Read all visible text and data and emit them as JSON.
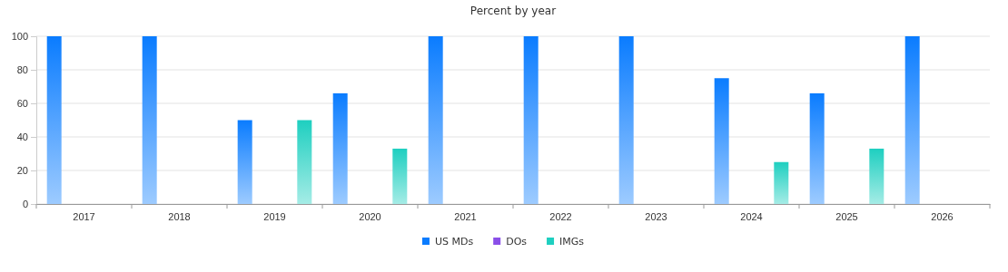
{
  "chart_data": {
    "type": "bar",
    "title": "Percent by year",
    "categories": [
      "2017",
      "2018",
      "2019",
      "2020",
      "2021",
      "2022",
      "2023",
      "2024",
      "2025",
      "2026"
    ],
    "series": [
      {
        "name": "US MDs",
        "color": "#0a7cff",
        "values": [
          100,
          100,
          50,
          66,
          100,
          100,
          100,
          75,
          66,
          100
        ]
      },
      {
        "name": "DOs",
        "color": "#8a4fe8",
        "values": [
          0,
          0,
          0,
          0,
          0,
          0,
          0,
          0,
          0,
          0
        ]
      },
      {
        "name": "IMGs",
        "color": "#1ecfc0",
        "values": [
          0,
          0,
          50,
          33,
          0,
          0,
          0,
          25,
          33,
          0
        ]
      }
    ],
    "ylim": [
      0,
      100
    ],
    "yticks": [
      0,
      20,
      40,
      60,
      80,
      100
    ],
    "grid": "y",
    "legend": "bottom"
  }
}
